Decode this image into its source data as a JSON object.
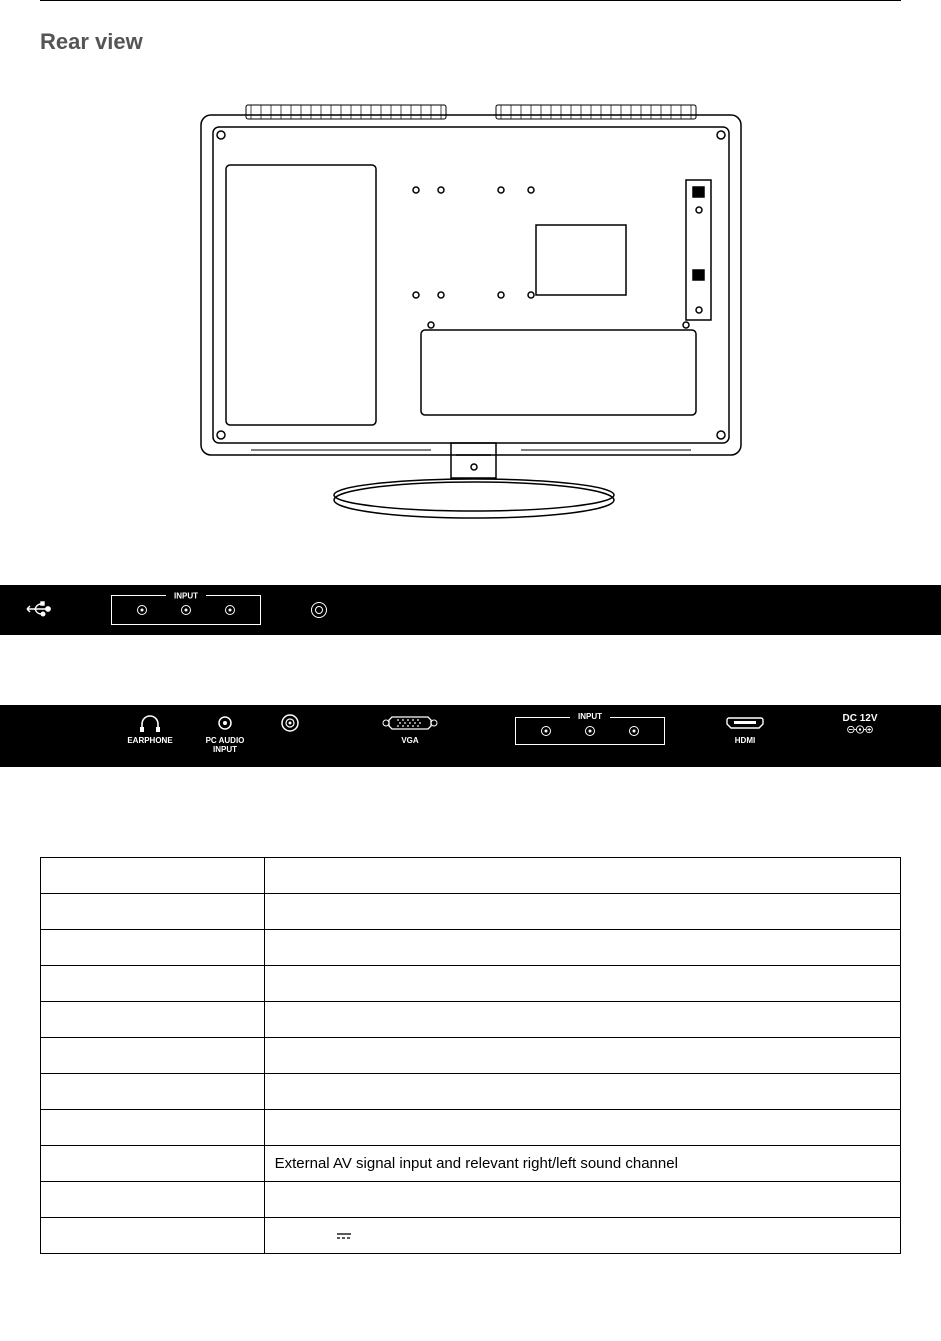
{
  "title": "Rear view",
  "strip1": {
    "input_label": "INPUT"
  },
  "strip2": {
    "earphone": "EARPHONE",
    "pcaudio_line1": "PC AUDIO",
    "pcaudio_line2": "INPUT",
    "vga": "VGA",
    "ypbpr_label": "INPUT",
    "hdmi": "HDMI",
    "dc_line1": "DC 12V"
  },
  "table": {
    "rows": [
      {
        "col1": "",
        "col2": ""
      },
      {
        "col1": "",
        "col2": ""
      },
      {
        "col1": "",
        "col2": ""
      },
      {
        "col1": "",
        "col2": ""
      },
      {
        "col1": "",
        "col2": ""
      },
      {
        "col1": "",
        "col2": ""
      },
      {
        "col1": "",
        "col2": ""
      },
      {
        "col1": "",
        "col2": ""
      },
      {
        "col1": "",
        "col2": "External AV signal input  and relevant right/left sound channel"
      },
      {
        "col1": "",
        "col2": ""
      },
      {
        "col1": "",
        "col2": ""
      }
    ]
  },
  "colors": {
    "strip_bg": "#000000",
    "strip_fg": "#ffffff",
    "title_color": "#555555",
    "border": "#000000"
  }
}
